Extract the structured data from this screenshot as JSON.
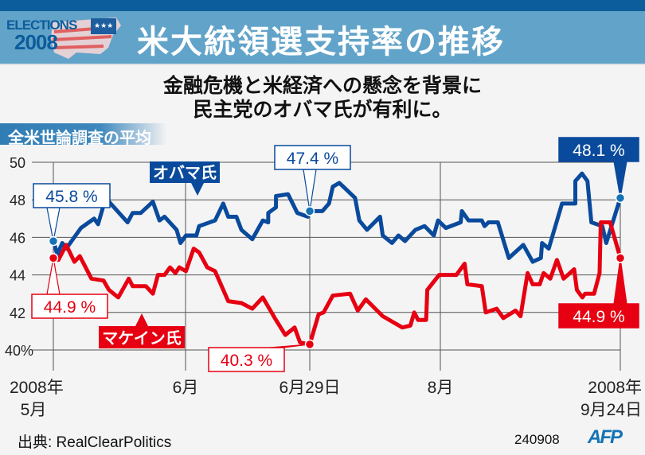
{
  "header": {
    "logo_line1": "ELECTIONS",
    "logo_line2": "2008",
    "title": "米大統領選支持率の推移"
  },
  "subtitle": {
    "line1": "金融危機と米経済への懸念を背景に",
    "line2": "民主党のオバマ氏が有利に。"
  },
  "section_label": "全米世論調査の平均",
  "footer": {
    "source": "出典: RealClearPolitics",
    "code": "240908",
    "brand": "AFP"
  },
  "colors": {
    "obama": "#0a4a9c",
    "mccain": "#e60012",
    "header": "#62a3c9",
    "dot_obama": "#1573b5"
  },
  "chart_data": {
    "type": "line",
    "title": "米大統領選支持率の推移",
    "ylabel": "%",
    "ylim": [
      40,
      50
    ],
    "xlim": [
      0,
      146
    ],
    "grid": true,
    "y_ticks": [
      {
        "value": 40,
        "label": "40%"
      },
      {
        "value": 42,
        "label": "42"
      },
      {
        "value": 44,
        "label": "44"
      },
      {
        "value": 46,
        "label": "46"
      },
      {
        "value": 48,
        "label": "48"
      },
      {
        "value": 50,
        "label": "50"
      }
    ],
    "x_ticks": [
      {
        "x": 0,
        "line1": "2008年",
        "line2": "5月"
      },
      {
        "x": 34,
        "line1": "6月",
        "line2": ""
      },
      {
        "x": 66,
        "line1": "6月29日",
        "line2": ""
      },
      {
        "x": 100,
        "line1": "8月",
        "line2": ""
      },
      {
        "x": 146,
        "line1": "2008年",
        "line2": "9月24日"
      }
    ],
    "series": [
      {
        "name": "オバマ氏",
        "points": [
          [
            0,
            45.8
          ],
          [
            1,
            45.1
          ],
          [
            2.3,
            45.7
          ],
          [
            3.3,
            45.4
          ],
          [
            7.1,
            46.5
          ],
          [
            10.5,
            47.0
          ],
          [
            11.5,
            46.7
          ],
          [
            12.9,
            47.7
          ],
          [
            14.3,
            47.9
          ],
          [
            19.1,
            46.8
          ],
          [
            20.4,
            47.3
          ],
          [
            22.5,
            47.3
          ],
          [
            25.6,
            47.9
          ],
          [
            27.3,
            46.9
          ],
          [
            28.6,
            47.1
          ],
          [
            31.7,
            46.4
          ],
          [
            32.7,
            45.7
          ],
          [
            34.1,
            46.1
          ],
          [
            36.8,
            46.1
          ],
          [
            37.5,
            46.6
          ],
          [
            41.6,
            46.9
          ],
          [
            43.7,
            47.8
          ],
          [
            45,
            47.1
          ],
          [
            47.1,
            47.1
          ],
          [
            48.4,
            46.4
          ],
          [
            51.2,
            45.9
          ],
          [
            53.9,
            46.9
          ],
          [
            55.3,
            46.8
          ],
          [
            55.3,
            47.3
          ],
          [
            57.3,
            47.6
          ],
          [
            57.3,
            48.2
          ],
          [
            60.4,
            48.3
          ],
          [
            62.8,
            47.3
          ],
          [
            65.5,
            47.1
          ],
          [
            65.9,
            47.4
          ],
          [
            69.3,
            47.4
          ],
          [
            71,
            47.8
          ],
          [
            72,
            48.7
          ],
          [
            73.7,
            48.9
          ],
          [
            77.8,
            48.1
          ],
          [
            78.9,
            46.9
          ],
          [
            80.9,
            46.4
          ],
          [
            84.3,
            47.1
          ],
          [
            85,
            46.1
          ],
          [
            87.4,
            45.7
          ],
          [
            89.1,
            46.1
          ],
          [
            90.8,
            45.8
          ],
          [
            93.5,
            46.4
          ],
          [
            95.9,
            46.6
          ],
          [
            98.3,
            46.1
          ],
          [
            99.4,
            46.9
          ],
          [
            101.4,
            46.5
          ],
          [
            105.2,
            46.8
          ],
          [
            105.5,
            47.4
          ],
          [
            107.2,
            46.9
          ],
          [
            110.6,
            46.9
          ],
          [
            111.3,
            46.6
          ],
          [
            112.3,
            46.8
          ],
          [
            114.7,
            46.8
          ],
          [
            117.5,
            44.9
          ],
          [
            121.2,
            45.6
          ],
          [
            123.6,
            44.7
          ],
          [
            125.7,
            44.9
          ],
          [
            126,
            45.7
          ],
          [
            127.7,
            45.4
          ],
          [
            131.1,
            47.8
          ],
          [
            134.5,
            47.8
          ],
          [
            134.5,
            49.0
          ],
          [
            136.2,
            49.4
          ],
          [
            137.6,
            49.0
          ],
          [
            138.6,
            46.8
          ],
          [
            141.4,
            46.6
          ],
          [
            142.4,
            45.7
          ],
          [
            146,
            48.1
          ]
        ],
        "annotations": [
          {
            "x": 0,
            "value": 45.8,
            "label": "45.8 %"
          },
          {
            "x": 66,
            "value": 47.4,
            "label": "47.4 %"
          },
          {
            "x": 146,
            "value": 48.1,
            "label": "48.1 %"
          }
        ]
      },
      {
        "name": "マケイン氏",
        "points": [
          [
            0,
            44.9
          ],
          [
            1.3,
            44.8
          ],
          [
            3.3,
            45.6
          ],
          [
            5.4,
            44.7
          ],
          [
            6.8,
            45.0
          ],
          [
            9.8,
            43.8
          ],
          [
            12.9,
            43.7
          ],
          [
            14.3,
            43.2
          ],
          [
            16.7,
            42.8
          ],
          [
            19.4,
            43.8
          ],
          [
            20.4,
            43.4
          ],
          [
            23.8,
            43.4
          ],
          [
            25.6,
            43.0
          ],
          [
            26.9,
            44.0
          ],
          [
            28.6,
            44.0
          ],
          [
            30,
            44.4
          ],
          [
            31.4,
            44.1
          ],
          [
            32.4,
            44.4
          ],
          [
            34.1,
            44.2
          ],
          [
            36.1,
            45.4
          ],
          [
            37.5,
            45.2
          ],
          [
            39.6,
            44.4
          ],
          [
            41.6,
            44.2
          ],
          [
            45,
            42.6
          ],
          [
            48.4,
            42.5
          ],
          [
            51.2,
            42.2
          ],
          [
            53.9,
            42.8
          ],
          [
            57,
            41.7
          ],
          [
            59.7,
            40.8
          ],
          [
            62.1,
            41.2
          ],
          [
            63.5,
            40.4
          ],
          [
            66,
            40.3
          ],
          [
            68.3,
            41.9
          ],
          [
            69.6,
            42.0
          ],
          [
            72,
            42.9
          ],
          [
            76.5,
            43.0
          ],
          [
            78.5,
            42.1
          ],
          [
            80.6,
            42.7
          ],
          [
            85,
            41.8
          ],
          [
            90.1,
            41.2
          ],
          [
            92.2,
            41.3
          ],
          [
            93.2,
            42.0
          ],
          [
            94.2,
            41.6
          ],
          [
            96.3,
            41.6
          ],
          [
            96.6,
            43.2
          ],
          [
            99.7,
            44.0
          ],
          [
            104.1,
            44.0
          ],
          [
            106.2,
            44.6
          ],
          [
            106.9,
            43.5
          ],
          [
            110.6,
            43.4
          ],
          [
            111.6,
            42.0
          ],
          [
            114.4,
            42.2
          ],
          [
            116.1,
            41.7
          ],
          [
            119.2,
            42.1
          ],
          [
            120.5,
            41.8
          ],
          [
            122.3,
            44.1
          ],
          [
            123.6,
            43.5
          ],
          [
            125.4,
            43.5
          ],
          [
            126.4,
            44.1
          ],
          [
            128.1,
            43.8
          ],
          [
            129.8,
            44.8
          ],
          [
            131.5,
            43.8
          ],
          [
            134.2,
            44.3
          ],
          [
            134.9,
            43.2
          ],
          [
            136.3,
            42.8
          ],
          [
            137,
            43.0
          ],
          [
            139.3,
            43.0
          ],
          [
            140.7,
            44.1
          ],
          [
            141,
            46.8
          ],
          [
            143.4,
            46.8
          ],
          [
            146,
            44.9
          ]
        ],
        "annotations": [
          {
            "x": 0,
            "value": 44.9,
            "label": "44.9 %"
          },
          {
            "x": 66,
            "value": 40.3,
            "label": "40.3 %"
          },
          {
            "x": 146,
            "value": 44.9,
            "label": "44.9 %"
          }
        ]
      }
    ]
  }
}
